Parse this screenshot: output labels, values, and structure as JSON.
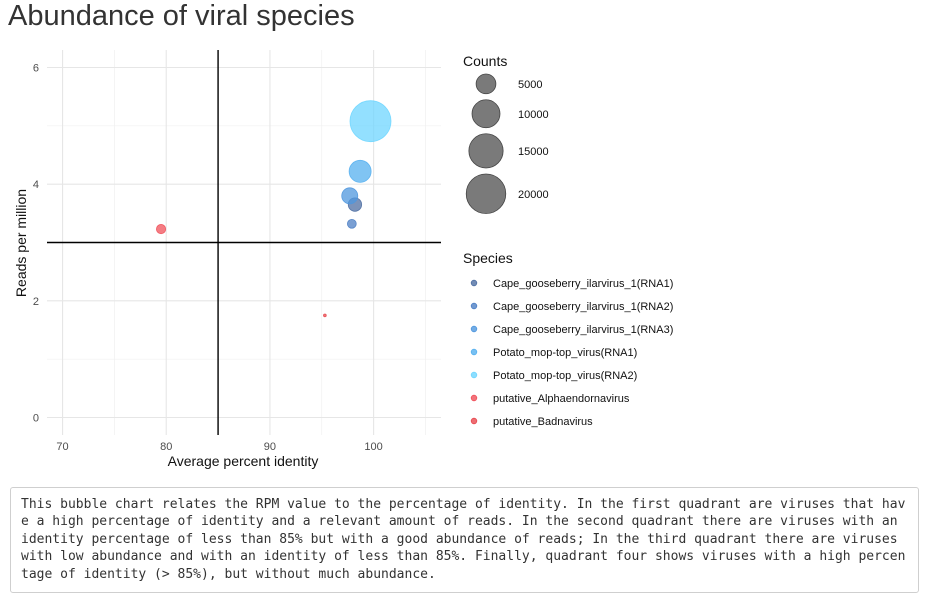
{
  "page": {
    "title": "Abundance of viral species",
    "description": "This bubble chart relates the RPM value to the percentage of identity. In the first quadrant are viruses that have a high percentage of identity and a relevant amount of reads. In the second quadrant there are viruses with an identity percentage of less than 85% but with a good abundance of reads; In the third quadrant there are viruses with low abundance and with an identity of less than 85%. Finally, quadrant four shows viruses with a high percentage of identity (> 85%), but without much abundance."
  },
  "chart_data": {
    "type": "scatter",
    "title": "Abundance of viral species",
    "xlabel": "Average percent identity",
    "ylabel": "Reads per million",
    "xlim": [
      68.5,
      106.5
    ],
    "ylim": [
      -0.3,
      6.3
    ],
    "x_ticks": [
      70,
      80,
      90,
      100
    ],
    "y_ticks": [
      0,
      2,
      4,
      6
    ],
    "grid": true,
    "reference_lines": {
      "x": 85,
      "y": 3
    },
    "size_legend": {
      "title": "Counts",
      "values": [
        5000,
        10000,
        15000,
        20000
      ]
    },
    "color_legend": {
      "title": "Species",
      "placement": "right"
    },
    "series": [
      {
        "name": "Cape_gooseberry_ilarvirus_1(RNA1)",
        "color": "#4f6fa3",
        "points": [
          {
            "x": 98.2,
            "y": 3.65,
            "counts": 2300
          }
        ]
      },
      {
        "name": "Cape_gooseberry_ilarvirus_1(RNA2)",
        "color": "#4d7fc4",
        "points": [
          {
            "x": 97.9,
            "y": 3.32,
            "counts": 1000
          }
        ]
      },
      {
        "name": "Cape_gooseberry_ilarvirus_1(RNA3)",
        "color": "#4f97de",
        "points": [
          {
            "x": 97.7,
            "y": 3.8,
            "counts": 3300
          }
        ]
      },
      {
        "name": "Potato_mop-top_virus(RNA1)",
        "color": "#56b0ef",
        "points": [
          {
            "x": 98.7,
            "y": 4.22,
            "counts": 6200
          }
        ]
      },
      {
        "name": "Potato_mop-top_virus(RNA2)",
        "color": "#6fd6ff",
        "points": [
          {
            "x": 99.7,
            "y": 5.08,
            "counts": 21500
          }
        ]
      },
      {
        "name": "putative_Alphaendornavirus",
        "color": "#f0505a",
        "points": [
          {
            "x": 79.5,
            "y": 3.23,
            "counts": 1100
          }
        ]
      },
      {
        "name": "putative_Badnavirus",
        "color": "#e8484f",
        "points": [
          {
            "x": 95.3,
            "y": 1.75,
            "counts": 100
          }
        ]
      }
    ]
  }
}
